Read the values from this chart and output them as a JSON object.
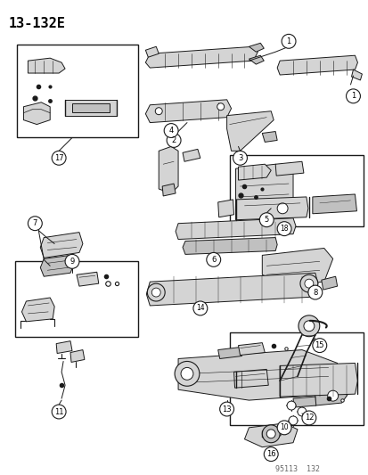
{
  "title": "13-132E",
  "watermark": "95113  132",
  "bg_color": "#ffffff",
  "fig_width": 4.14,
  "fig_height": 5.33,
  "dpi": 100,
  "title_fontsize": 11,
  "title_fontweight": "bold",
  "watermark_fontsize": 6,
  "line_color": "#1a1a1a",
  "fill_light": "#e8e8e8",
  "fill_mid": "#d4d4d4",
  "fill_dark": "#c0c0c0"
}
